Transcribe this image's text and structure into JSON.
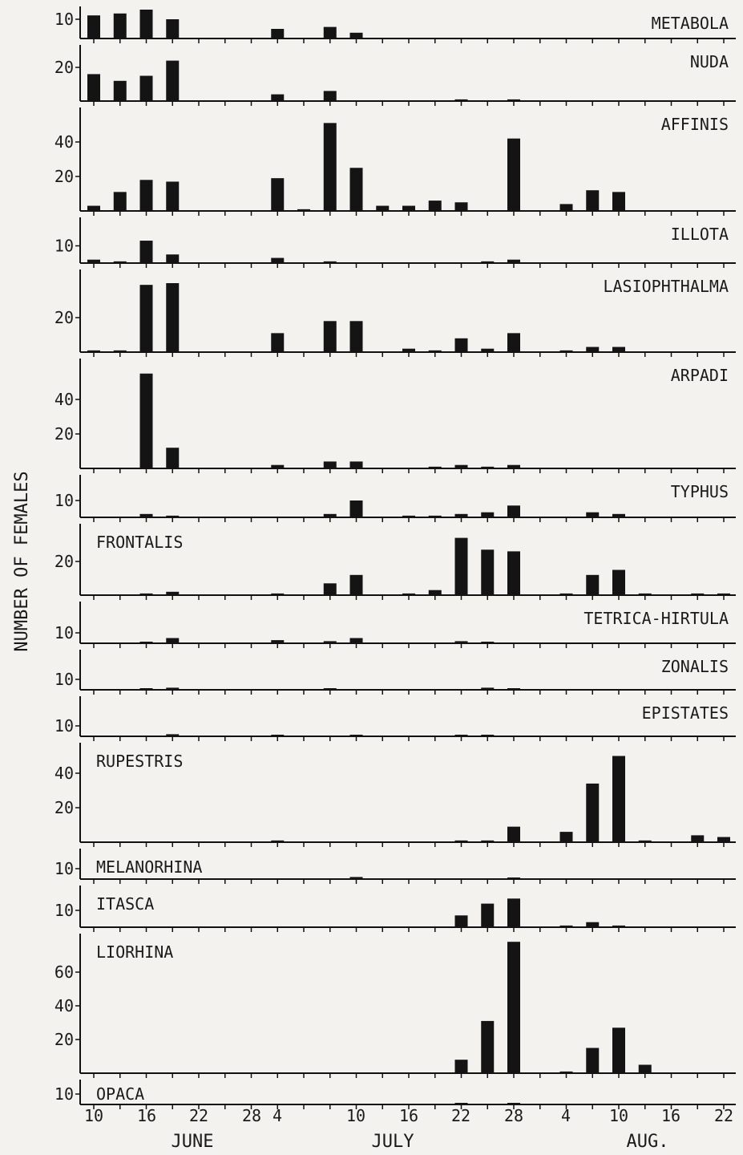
{
  "chart_data": {
    "type": "bar",
    "ylabel": "NUMBER OF FEMALES",
    "x_tick_labels": [
      "10",
      "16",
      "22",
      "28",
      "4",
      "10",
      "16",
      "22",
      "28",
      "4",
      "10",
      "16",
      "22"
    ],
    "month_labels": [
      "JUNE",
      "JULY",
      "AUG."
    ],
    "sample_dates": [
      "Jun 10",
      "Jun 13",
      "Jun 16",
      "Jun 19",
      "Jun 22",
      "Jun 25",
      "Jun 28",
      "Jul 1",
      "Jul 4",
      "Jul 7",
      "Jul 10",
      "Jul 13",
      "Jul 16",
      "Jul 19",
      "Jul 22",
      "Jul 25",
      "Jul 28",
      "Jul 31",
      "Aug 4",
      "Aug 7",
      "Aug 10",
      "Aug 13",
      "Aug 16",
      "Aug 19",
      "Aug 22"
    ],
    "panels": [
      {
        "name": "METABOLA",
        "label_side": "right",
        "yticks": [
          10
        ],
        "ymax": 14,
        "values": [
          12,
          13,
          15,
          10,
          0,
          0,
          0,
          5,
          0,
          6,
          3,
          0,
          0,
          0,
          0,
          0,
          0,
          0,
          0,
          0,
          0,
          0,
          0,
          0,
          0
        ]
      },
      {
        "name": "NUDA",
        "label_side": "right",
        "yticks": [
          20
        ],
        "ymax": 24,
        "values": [
          16,
          12,
          15,
          24,
          0,
          0,
          0,
          4,
          0,
          6,
          0,
          0,
          0,
          0,
          1,
          0,
          1,
          0,
          0,
          0,
          0,
          0,
          0,
          0,
          0
        ]
      },
      {
        "name": "AFFINIS",
        "label_side": "right",
        "yticks": [
          20,
          40
        ],
        "ymax": 52,
        "values": [
          3,
          11,
          18,
          17,
          0,
          0,
          0,
          19,
          1,
          51,
          25,
          3,
          3,
          6,
          5,
          0,
          42,
          0,
          4,
          12,
          11,
          0,
          0,
          0,
          0
        ]
      },
      {
        "name": "ILLOTA",
        "label_side": "right",
        "yticks": [
          10
        ],
        "ymax": 14,
        "values": [
          2,
          1,
          13,
          5,
          0,
          0,
          0,
          3,
          0,
          1,
          0,
          0,
          0,
          0,
          0,
          1,
          2,
          0,
          0,
          0,
          0,
          0,
          0,
          0,
          0
        ]
      },
      {
        "name": "LASIOPHTHALMA",
        "label_side": "right",
        "yticks": [
          20
        ],
        "ymax": 40,
        "values": [
          1,
          1,
          39,
          40,
          0,
          0,
          0,
          11,
          0,
          18,
          18,
          0,
          2,
          1,
          8,
          2,
          11,
          0,
          1,
          3,
          3,
          0,
          0,
          0,
          0
        ]
      },
      {
        "name": "ARPADI",
        "label_side": "right",
        "yticks": [
          20,
          40
        ],
        "ymax": 56,
        "values": [
          0,
          0,
          55,
          12,
          0,
          0,
          0,
          2,
          0,
          4,
          4,
          0,
          0,
          1,
          2,
          1,
          2,
          0,
          0,
          0,
          0,
          0,
          0,
          0,
          0
        ]
      },
      {
        "name": "TYPHUS",
        "label_side": "right",
        "yticks": [
          10
        ],
        "ymax": 14,
        "values": [
          0,
          0,
          2,
          1,
          0,
          0,
          0,
          0,
          0,
          2,
          10,
          0,
          1,
          1,
          2,
          3,
          7,
          0,
          0,
          3,
          2,
          0,
          0,
          0,
          0
        ]
      },
      {
        "name": "FRONTALIS",
        "label_side": "left",
        "yticks": [
          20
        ],
        "ymax": 36,
        "values": [
          0,
          0,
          1,
          2,
          0,
          0,
          0,
          1,
          0,
          7,
          12,
          0,
          1,
          3,
          34,
          27,
          26,
          0,
          1,
          12,
          15,
          1,
          0,
          1,
          1
        ]
      },
      {
        "name": "TETRICA-HIRTULA",
        "label_side": "right",
        "yticks": [
          10
        ],
        "ymax": 14,
        "values": [
          0,
          0,
          1,
          5,
          0,
          0,
          0,
          3,
          0,
          2,
          5,
          0,
          0,
          0,
          2,
          1,
          0,
          0,
          0,
          0,
          0,
          0,
          0,
          0,
          0
        ]
      },
      {
        "name": "ZONALIS",
        "label_side": "right",
        "yticks": [
          10
        ],
        "ymax": 14,
        "values": [
          0,
          0,
          1,
          2,
          0,
          0,
          0,
          0,
          0,
          1,
          0,
          0,
          0,
          0,
          0,
          2,
          1,
          0,
          0,
          0,
          0,
          0,
          0,
          0,
          0
        ]
      },
      {
        "name": "EPISTATES",
        "label_side": "right",
        "yticks": [
          10
        ],
        "ymax": 14,
        "values": [
          0,
          0,
          0,
          2,
          0,
          0,
          0,
          1,
          0,
          0,
          1,
          0,
          0,
          0,
          1,
          1,
          0,
          0,
          0,
          0,
          0,
          0,
          0,
          0,
          0
        ]
      },
      {
        "name": "RUPESTRIS",
        "label_side": "left",
        "yticks": [
          20,
          40
        ],
        "ymax": 52,
        "values": [
          0,
          0,
          0,
          0,
          0,
          0,
          0,
          1,
          0,
          0,
          0,
          0,
          0,
          0,
          1,
          1,
          9,
          0,
          6,
          34,
          50,
          1,
          0,
          4,
          3
        ]
      },
      {
        "name": "MELANORHINA",
        "label_side": "left",
        "yticks": [
          10
        ],
        "ymax": 14,
        "values": [
          0,
          0,
          0,
          0,
          0,
          0,
          0,
          0,
          0,
          0,
          2,
          0,
          0,
          0,
          0,
          0,
          1,
          0,
          0,
          0,
          0,
          0,
          0,
          0,
          0
        ]
      },
      {
        "name": "ITASCA",
        "label_side": "left",
        "yticks": [
          10
        ],
        "ymax": 14,
        "values": [
          0,
          0,
          0,
          0,
          0,
          0,
          0,
          0,
          0,
          0,
          0,
          0,
          0,
          0,
          7,
          14,
          17,
          0,
          1,
          3,
          1,
          0,
          0,
          0,
          0
        ]
      },
      {
        "name": "LIORHINA",
        "label_side": "left",
        "yticks": [
          20,
          40,
          60
        ],
        "ymax": 78,
        "values": [
          0,
          0,
          0,
          0,
          0,
          0,
          0,
          0,
          0,
          0,
          0,
          0,
          0,
          0,
          8,
          31,
          78,
          0,
          1,
          15,
          27,
          5,
          0,
          0,
          0
        ]
      },
      {
        "name": "OPACA",
        "label_side": "left",
        "yticks": [
          10
        ],
        "ymax": 14,
        "values": [
          0,
          0,
          0,
          0,
          0,
          0,
          0,
          0,
          0,
          0,
          0,
          0,
          0,
          0,
          1,
          0,
          1,
          0,
          0,
          0,
          0,
          0,
          0,
          0,
          0
        ]
      }
    ]
  }
}
